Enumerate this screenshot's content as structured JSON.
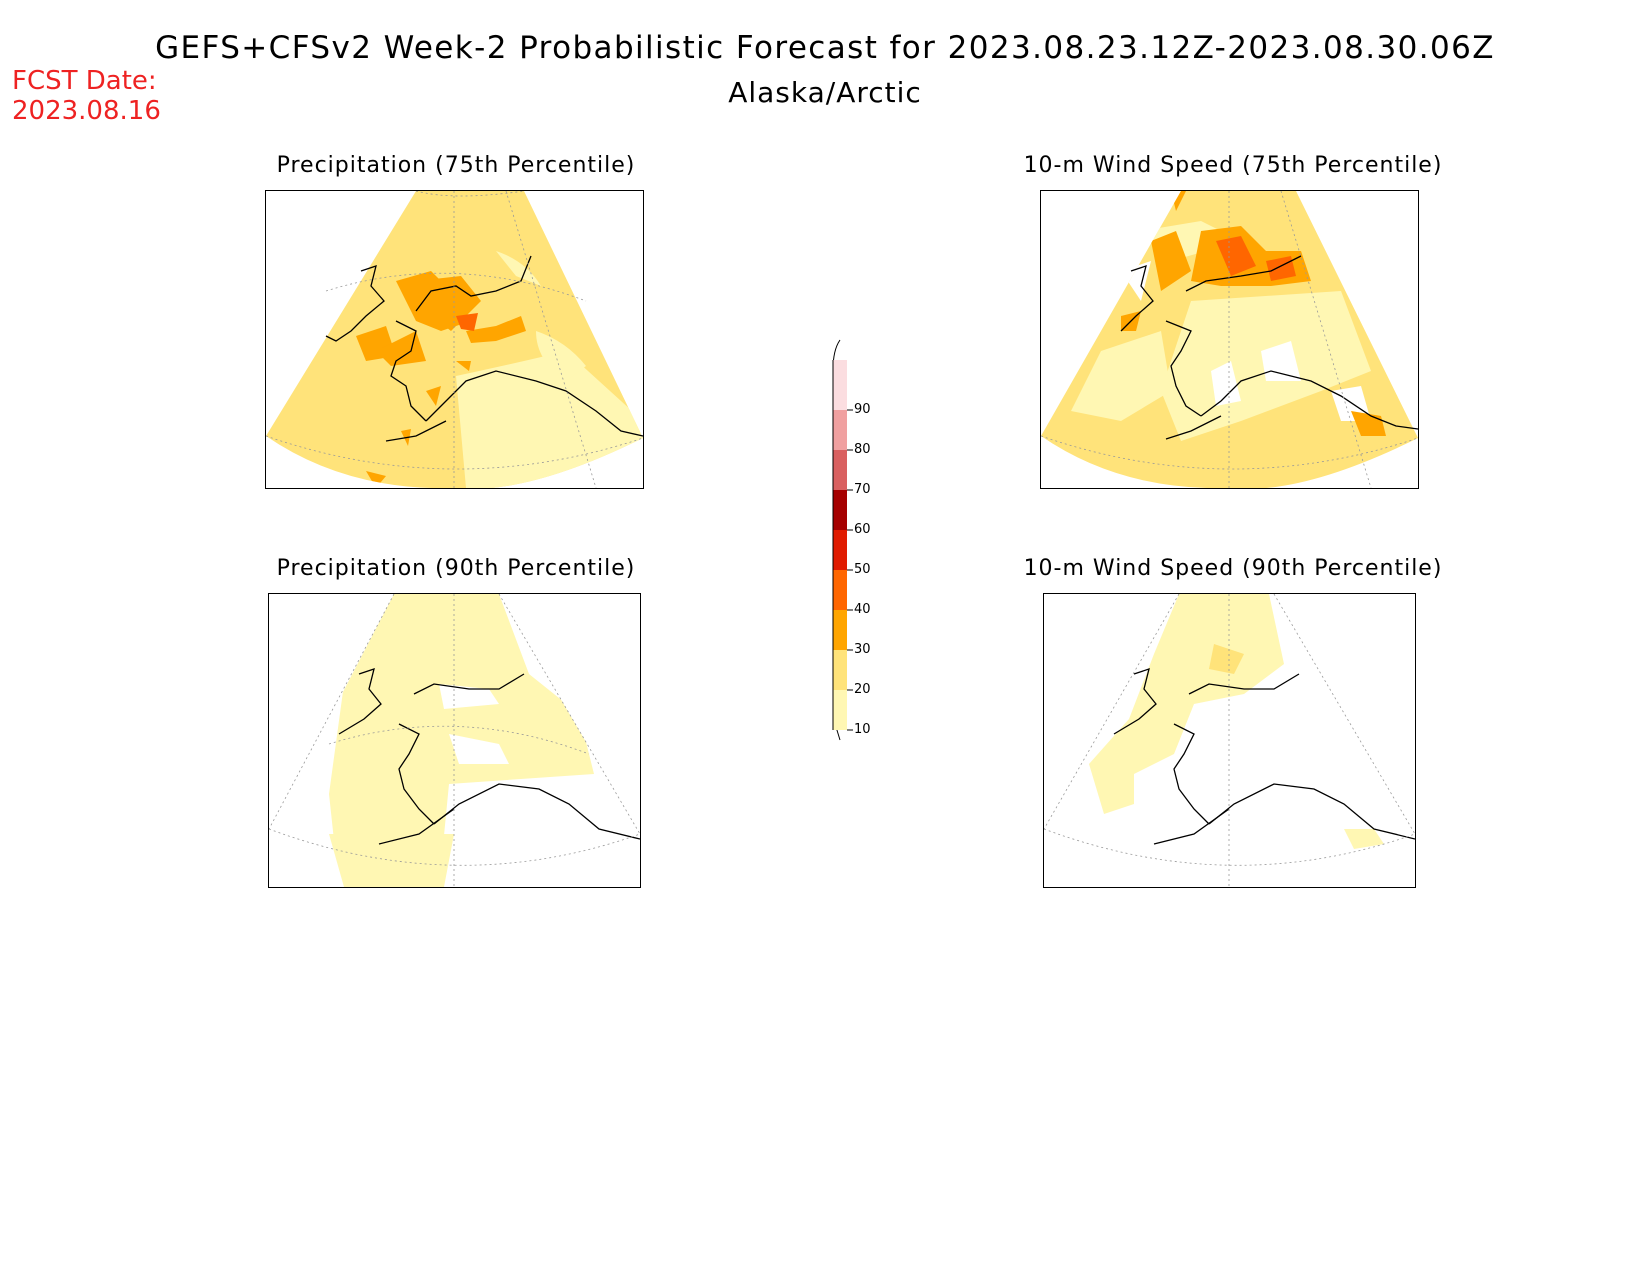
{
  "header": {
    "title": "GEFS+CFSv2 Week-2 Probabilistic Forecast for 2023.08.23.12Z-2023.08.30.06Z",
    "subtitle": "Alaska/Arctic",
    "fcst_label": "FCST Date:",
    "fcst_date": "2023.08.16"
  },
  "panels": [
    {
      "id": "precip75",
      "title": "Precipitation (75th Percentile)"
    },
    {
      "id": "wind75",
      "title": "10-m Wind Speed (75th Percentile)"
    },
    {
      "id": "precip90",
      "title": "Precipitation (90th Percentile)"
    },
    {
      "id": "wind90",
      "title": "10-m Wind Speed (90th Percentile)"
    }
  ],
  "colorbar": {
    "levels": [
      "90",
      "80",
      "70",
      "60",
      "50",
      "40",
      "30",
      "20",
      "10"
    ],
    "colors": {
      "10": "#fff7b3",
      "20": "#ffe37a",
      "30": "#ffa500",
      "40": "#ff6600",
      "50": "#e01b00",
      "60": "#a50000",
      "70": "#d96060",
      "80": "#f0a0a0",
      "90": "#fbdde0"
    }
  },
  "title_color": "#ee2222"
}
